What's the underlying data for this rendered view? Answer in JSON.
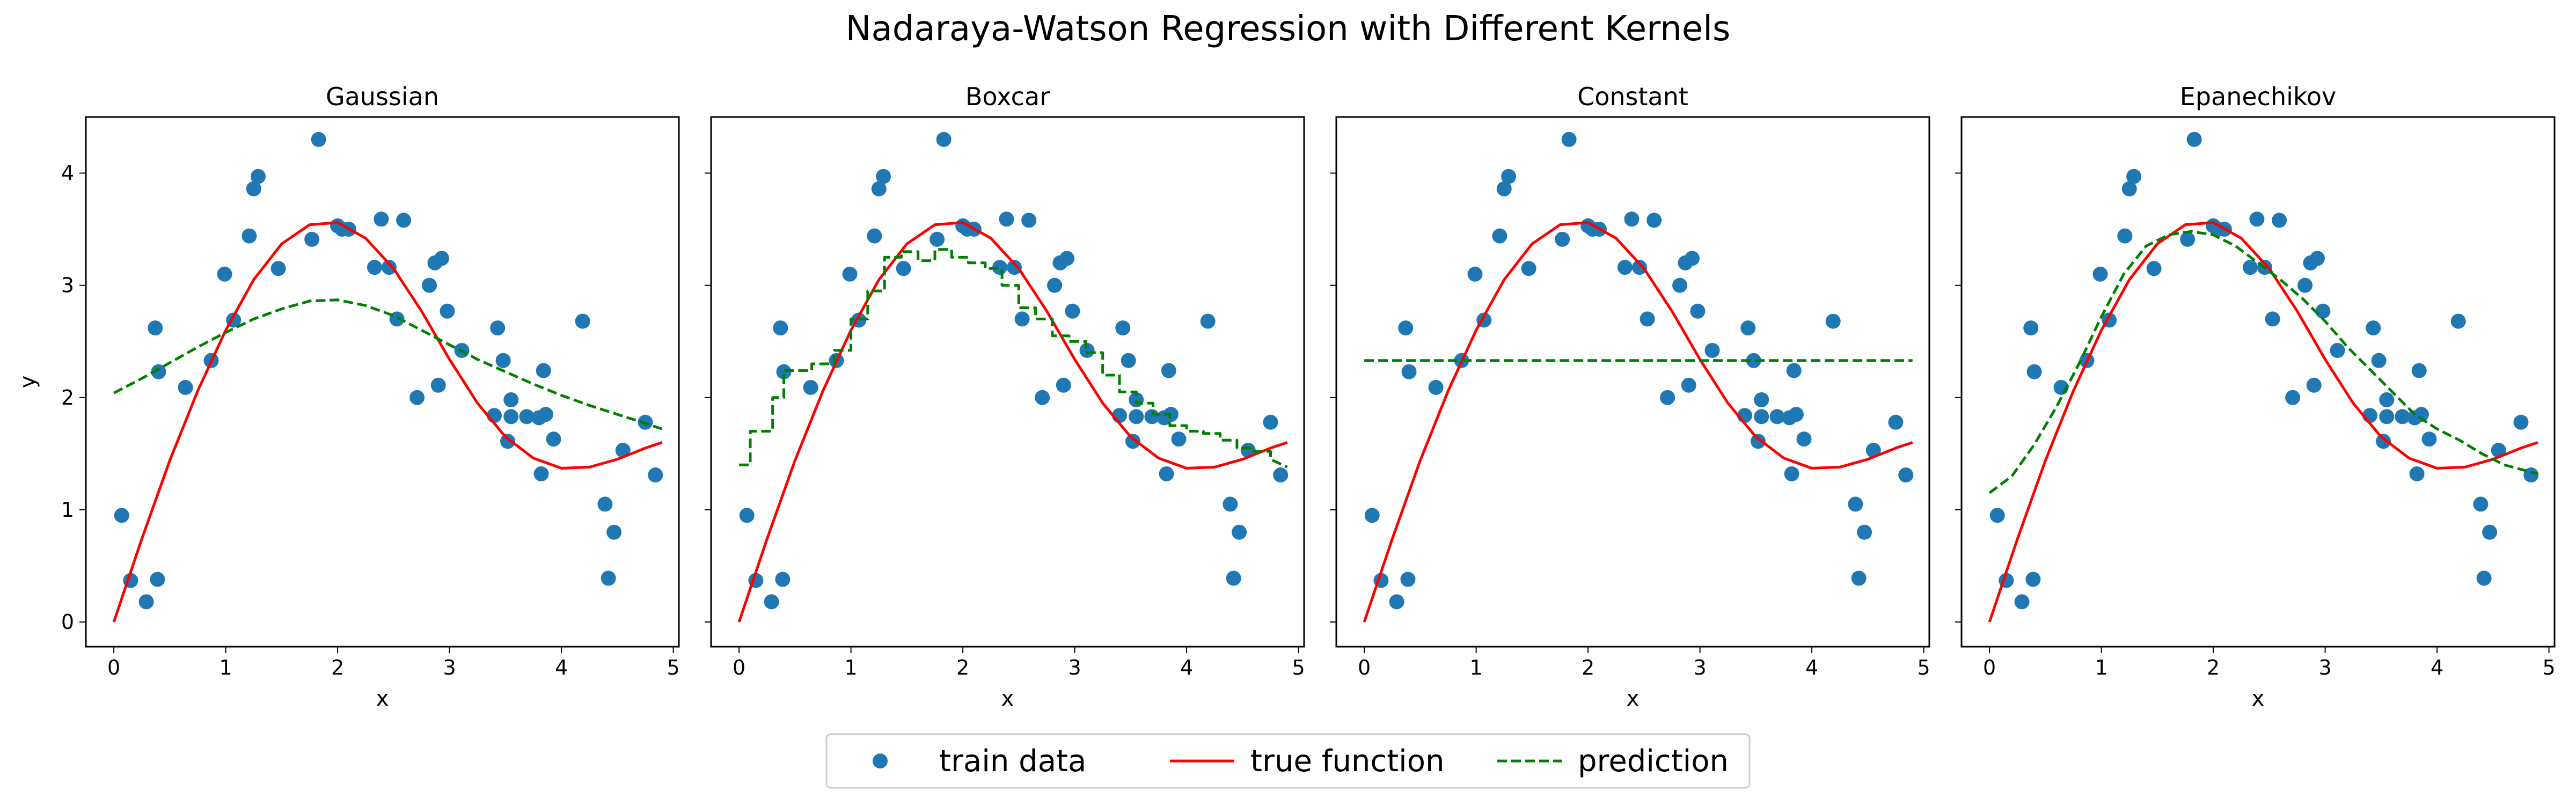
{
  "figure": {
    "title": "Nadaraya-Watson Regression with Different Kernels"
  },
  "legend": {
    "placement": "bottom-center",
    "items": [
      {
        "label": "train data",
        "kind": "scatter"
      },
      {
        "label": "true function",
        "kind": "line"
      },
      {
        "label": "prediction",
        "kind": "dashed-line"
      }
    ]
  },
  "colors": {
    "train_data": "#1f77b4",
    "true_function": "#ff0000",
    "prediction": "#008000"
  },
  "chart_data": [
    {
      "type": "scatter",
      "title": "Gaussian",
      "xlabel": "x",
      "ylabel": "y",
      "xlim": [
        -0.25,
        5.05
      ],
      "ylim": [
        -0.22,
        4.5
      ],
      "xticks": [
        "0",
        "1",
        "2",
        "3",
        "4",
        "5"
      ],
      "yticks": [
        "0",
        "1",
        "2",
        "3",
        "4"
      ],
      "grid": false,
      "series": [
        {
          "name": "train data",
          "type": "scatter",
          "x": [
            0.07,
            0.15,
            0.29,
            0.37,
            0.39,
            0.4,
            0.64,
            0.87,
            0.99,
            1.07,
            1.21,
            1.25,
            1.29,
            1.47,
            1.77,
            1.83,
            2.0,
            2.04,
            2.1,
            2.33,
            2.39,
            2.46,
            2.53,
            2.59,
            2.71,
            2.82,
            2.87,
            2.9,
            2.93,
            2.98,
            3.11,
            3.4,
            3.43,
            3.48,
            3.52,
            3.55,
            3.55,
            3.69,
            3.8,
            3.82,
            3.84,
            3.86,
            3.93,
            4.19,
            4.39,
            4.42,
            4.47,
            4.55,
            4.75,
            4.84
          ],
          "y": [
            0.95,
            0.37,
            0.18,
            2.62,
            0.38,
            2.23,
            2.09,
            2.33,
            3.1,
            2.69,
            3.44,
            3.86,
            3.97,
            3.15,
            3.41,
            4.3,
            3.53,
            3.5,
            3.5,
            3.16,
            3.59,
            3.16,
            2.7,
            3.58,
            2.0,
            3.0,
            3.2,
            2.11,
            3.24,
            2.77,
            2.42,
            1.84,
            2.62,
            2.33,
            1.61,
            1.98,
            1.83,
            1.83,
            1.82,
            1.32,
            2.24,
            1.85,
            1.63,
            2.68,
            1.05,
            0.39,
            0.8,
            1.53,
            1.78,
            1.31
          ]
        },
        {
          "name": "true function",
          "type": "line",
          "x": [
            0.0,
            0.25,
            0.5,
            0.75,
            1.0,
            1.25,
            1.5,
            1.75,
            2.0,
            2.25,
            2.5,
            2.75,
            3.0,
            3.25,
            3.5,
            3.75,
            4.0,
            4.25,
            4.5,
            4.75,
            4.9
          ],
          "y": [
            0.0,
            0.74,
            1.44,
            2.06,
            2.6,
            3.05,
            3.37,
            3.54,
            3.56,
            3.42,
            3.15,
            2.77,
            2.34,
            1.95,
            1.65,
            1.46,
            1.37,
            1.38,
            1.45,
            1.55,
            1.6
          ]
        },
        {
          "name": "prediction",
          "type": "dashed-line",
          "x": [
            0.0,
            0.25,
            0.5,
            0.75,
            1.0,
            1.25,
            1.5,
            1.75,
            2.0,
            2.25,
            2.5,
            2.75,
            3.0,
            3.25,
            3.5,
            3.75,
            4.0,
            4.25,
            4.5,
            4.75,
            4.9
          ],
          "y": [
            2.04,
            2.17,
            2.31,
            2.45,
            2.58,
            2.7,
            2.79,
            2.86,
            2.87,
            2.82,
            2.73,
            2.6,
            2.47,
            2.34,
            2.23,
            2.12,
            2.02,
            1.93,
            1.85,
            1.77,
            1.72
          ]
        }
      ]
    },
    {
      "type": "scatter",
      "title": "Boxcar",
      "xlabel": "x",
      "ylabel": "",
      "xlim": [
        -0.25,
        5.05
      ],
      "ylim": [
        -0.22,
        4.5
      ],
      "xticks": [
        "0",
        "1",
        "2",
        "3",
        "4",
        "5"
      ],
      "yticks": [
        "0",
        "1",
        "2",
        "3",
        "4"
      ],
      "grid": false,
      "series": [
        {
          "name": "train data",
          "type": "scatter",
          "x": [
            0.07,
            0.15,
            0.29,
            0.37,
            0.39,
            0.4,
            0.64,
            0.87,
            0.99,
            1.07,
            1.21,
            1.25,
            1.29,
            1.47,
            1.77,
            1.83,
            2.0,
            2.04,
            2.1,
            2.33,
            2.39,
            2.46,
            2.53,
            2.59,
            2.71,
            2.82,
            2.87,
            2.9,
            2.93,
            2.98,
            3.11,
            3.4,
            3.43,
            3.48,
            3.52,
            3.55,
            3.55,
            3.69,
            3.8,
            3.82,
            3.84,
            3.86,
            3.93,
            4.19,
            4.39,
            4.42,
            4.47,
            4.55,
            4.75,
            4.84
          ],
          "y": [
            0.95,
            0.37,
            0.18,
            2.62,
            0.38,
            2.23,
            2.09,
            2.33,
            3.1,
            2.69,
            3.44,
            3.86,
            3.97,
            3.15,
            3.41,
            4.3,
            3.53,
            3.5,
            3.5,
            3.16,
            3.59,
            3.16,
            2.7,
            3.58,
            2.0,
            3.0,
            3.2,
            2.11,
            3.24,
            2.77,
            2.42,
            1.84,
            2.62,
            2.33,
            1.61,
            1.98,
            1.83,
            1.83,
            1.82,
            1.32,
            2.24,
            1.85,
            1.63,
            2.68,
            1.05,
            0.39,
            0.8,
            1.53,
            1.78,
            1.31
          ]
        },
        {
          "name": "true function",
          "type": "line",
          "x": [
            0.0,
            0.25,
            0.5,
            0.75,
            1.0,
            1.25,
            1.5,
            1.75,
            2.0,
            2.25,
            2.5,
            2.75,
            3.0,
            3.25,
            3.5,
            3.75,
            4.0,
            4.25,
            4.5,
            4.75,
            4.9
          ],
          "y": [
            0.0,
            0.74,
            1.44,
            2.06,
            2.6,
            3.05,
            3.37,
            3.54,
            3.56,
            3.42,
            3.15,
            2.77,
            2.34,
            1.95,
            1.65,
            1.46,
            1.37,
            1.38,
            1.45,
            1.55,
            1.6
          ]
        },
        {
          "name": "prediction",
          "type": "dashed-line",
          "x": [
            0.0,
            0.1,
            0.1,
            0.3,
            0.3,
            0.4,
            0.4,
            0.65,
            0.65,
            0.85,
            0.85,
            1.0,
            1.0,
            1.15,
            1.15,
            1.3,
            1.3,
            1.45,
            1.45,
            1.6,
            1.6,
            1.75,
            1.75,
            1.9,
            1.9,
            2.05,
            2.05,
            2.2,
            2.2,
            2.35,
            2.35,
            2.5,
            2.5,
            2.65,
            2.65,
            2.8,
            2.8,
            2.95,
            2.95,
            3.1,
            3.1,
            3.25,
            3.25,
            3.4,
            3.4,
            3.55,
            3.55,
            3.7,
            3.7,
            3.85,
            3.85,
            4.0,
            4.0,
            4.15,
            4.15,
            4.3,
            4.3,
            4.45,
            4.45,
            4.6,
            4.6,
            4.75,
            4.75,
            4.9
          ],
          "y": [
            1.4,
            1.4,
            1.7,
            1.7,
            2.0,
            2.0,
            2.24,
            2.24,
            2.3,
            2.3,
            2.42,
            2.42,
            2.7,
            2.7,
            2.95,
            2.95,
            3.25,
            3.25,
            3.3,
            3.3,
            3.22,
            3.22,
            3.32,
            3.32,
            3.25,
            3.25,
            3.2,
            3.2,
            3.15,
            3.15,
            3.0,
            3.0,
            2.8,
            2.8,
            2.7,
            2.7,
            2.55,
            2.55,
            2.5,
            2.5,
            2.4,
            2.4,
            2.2,
            2.2,
            2.05,
            2.05,
            1.95,
            1.95,
            1.85,
            1.85,
            1.75,
            1.75,
            1.7,
            1.7,
            1.68,
            1.68,
            1.62,
            1.62,
            1.55,
            1.55,
            1.52,
            1.52,
            1.45,
            1.38
          ]
        }
      ]
    },
    {
      "type": "scatter",
      "title": "Constant",
      "xlabel": "x",
      "ylabel": "",
      "xlim": [
        -0.25,
        5.05
      ],
      "ylim": [
        -0.22,
        4.5
      ],
      "xticks": [
        "0",
        "1",
        "2",
        "3",
        "4",
        "5"
      ],
      "yticks": [
        "0",
        "1",
        "2",
        "3",
        "4"
      ],
      "grid": false,
      "series": [
        {
          "name": "train data",
          "type": "scatter",
          "x": [
            0.07,
            0.15,
            0.29,
            0.37,
            0.39,
            0.4,
            0.64,
            0.87,
            0.99,
            1.07,
            1.21,
            1.25,
            1.29,
            1.47,
            1.77,
            1.83,
            2.0,
            2.04,
            2.1,
            2.33,
            2.39,
            2.46,
            2.53,
            2.59,
            2.71,
            2.82,
            2.87,
            2.9,
            2.93,
            2.98,
            3.11,
            3.4,
            3.43,
            3.48,
            3.52,
            3.55,
            3.55,
            3.69,
            3.8,
            3.82,
            3.84,
            3.86,
            3.93,
            4.19,
            4.39,
            4.42,
            4.47,
            4.55,
            4.75,
            4.84
          ],
          "y": [
            0.95,
            0.37,
            0.18,
            2.62,
            0.38,
            2.23,
            2.09,
            2.33,
            3.1,
            2.69,
            3.44,
            3.86,
            3.97,
            3.15,
            3.41,
            4.3,
            3.53,
            3.5,
            3.5,
            3.16,
            3.59,
            3.16,
            2.7,
            3.58,
            2.0,
            3.0,
            3.2,
            2.11,
            3.24,
            2.77,
            2.42,
            1.84,
            2.62,
            2.33,
            1.61,
            1.98,
            1.83,
            1.83,
            1.82,
            1.32,
            2.24,
            1.85,
            1.63,
            2.68,
            1.05,
            0.39,
            0.8,
            1.53,
            1.78,
            1.31
          ]
        },
        {
          "name": "true function",
          "type": "line",
          "x": [
            0.0,
            0.25,
            0.5,
            0.75,
            1.0,
            1.25,
            1.5,
            1.75,
            2.0,
            2.25,
            2.5,
            2.75,
            3.0,
            3.25,
            3.5,
            3.75,
            4.0,
            4.25,
            4.5,
            4.75,
            4.9
          ],
          "y": [
            0.0,
            0.74,
            1.44,
            2.06,
            2.6,
            3.05,
            3.37,
            3.54,
            3.56,
            3.42,
            3.15,
            2.77,
            2.34,
            1.95,
            1.65,
            1.46,
            1.37,
            1.38,
            1.45,
            1.55,
            1.6
          ]
        },
        {
          "name": "prediction",
          "type": "dashed-line",
          "x": [
            0.0,
            4.9
          ],
          "y": [
            2.33,
            2.33
          ]
        }
      ]
    },
    {
      "type": "scatter",
      "title": "Epanechikov",
      "xlabel": "x",
      "ylabel": "",
      "xlim": [
        -0.25,
        5.05
      ],
      "ylim": [
        -0.22,
        4.5
      ],
      "xticks": [
        "0",
        "1",
        "2",
        "3",
        "4",
        "5"
      ],
      "yticks": [
        "0",
        "1",
        "2",
        "3",
        "4"
      ],
      "grid": false,
      "series": [
        {
          "name": "train data",
          "type": "scatter",
          "x": [
            0.07,
            0.15,
            0.29,
            0.37,
            0.39,
            0.4,
            0.64,
            0.87,
            0.99,
            1.07,
            1.21,
            1.25,
            1.29,
            1.47,
            1.77,
            1.83,
            2.0,
            2.04,
            2.1,
            2.33,
            2.39,
            2.46,
            2.53,
            2.59,
            2.71,
            2.82,
            2.87,
            2.9,
            2.93,
            2.98,
            3.11,
            3.4,
            3.43,
            3.48,
            3.52,
            3.55,
            3.55,
            3.69,
            3.8,
            3.82,
            3.84,
            3.86,
            3.93,
            4.19,
            4.39,
            4.42,
            4.47,
            4.55,
            4.75,
            4.84
          ],
          "y": [
            0.95,
            0.37,
            0.18,
            2.62,
            0.38,
            2.23,
            2.09,
            2.33,
            3.1,
            2.69,
            3.44,
            3.86,
            3.97,
            3.15,
            3.41,
            4.3,
            3.53,
            3.5,
            3.5,
            3.16,
            3.59,
            3.16,
            2.7,
            3.58,
            2.0,
            3.0,
            3.2,
            2.11,
            3.24,
            2.77,
            2.42,
            1.84,
            2.62,
            2.33,
            1.61,
            1.98,
            1.83,
            1.83,
            1.82,
            1.32,
            2.24,
            1.85,
            1.63,
            2.68,
            1.05,
            0.39,
            0.8,
            1.53,
            1.78,
            1.31
          ]
        },
        {
          "name": "true function",
          "type": "line",
          "x": [
            0.0,
            0.25,
            0.5,
            0.75,
            1.0,
            1.25,
            1.5,
            1.75,
            2.0,
            2.25,
            2.5,
            2.75,
            3.0,
            3.25,
            3.5,
            3.75,
            4.0,
            4.25,
            4.5,
            4.75,
            4.9
          ],
          "y": [
            0.0,
            0.74,
            1.44,
            2.06,
            2.6,
            3.05,
            3.37,
            3.54,
            3.56,
            3.42,
            3.15,
            2.77,
            2.34,
            1.95,
            1.65,
            1.46,
            1.37,
            1.38,
            1.45,
            1.55,
            1.6
          ]
        },
        {
          "name": "prediction",
          "type": "dashed-line",
          "x": [
            0.0,
            0.2,
            0.4,
            0.6,
            0.8,
            1.0,
            1.2,
            1.4,
            1.6,
            1.8,
            2.0,
            2.2,
            2.4,
            2.6,
            2.8,
            3.0,
            3.2,
            3.4,
            3.6,
            3.8,
            4.0,
            4.2,
            4.4,
            4.6,
            4.9
          ],
          "y": [
            1.15,
            1.3,
            1.58,
            1.92,
            2.3,
            2.72,
            3.1,
            3.35,
            3.45,
            3.48,
            3.45,
            3.35,
            3.2,
            3.05,
            2.88,
            2.68,
            2.45,
            2.25,
            2.05,
            1.85,
            1.72,
            1.62,
            1.5,
            1.4,
            1.32
          ]
        }
      ]
    }
  ]
}
